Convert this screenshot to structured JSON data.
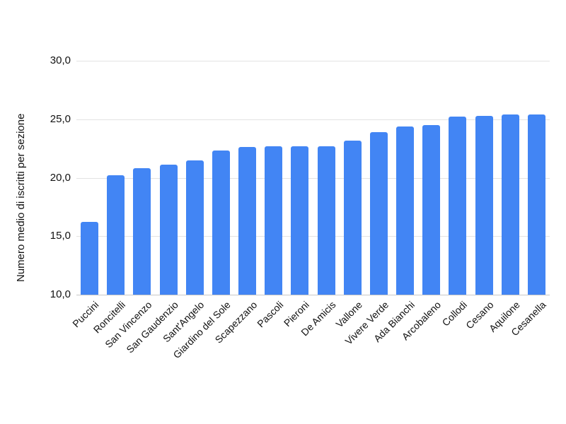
{
  "chart_data": {
    "type": "bar",
    "title": "",
    "xlabel": "",
    "ylabel": "Numero medio di iscritti per sezione",
    "categories": [
      "Puccini",
      "Roncitelli",
      "San Vincenzo",
      "San Gaudenzio",
      "Sant'Angelo",
      "Giardino del Sole",
      "Scapezzano",
      "Pascoli",
      "Pieroni",
      "De Amicis",
      "Vallone",
      "Vivere Verde",
      "Ada Bianchi",
      "Arcobaleno",
      "Collodi",
      "Cesano",
      "Aquilone",
      "Cesanella"
    ],
    "values": [
      16.2,
      20.2,
      20.8,
      21.1,
      21.5,
      22.3,
      22.6,
      22.7,
      22.7,
      22.7,
      23.2,
      23.9,
      24.4,
      24.5,
      25.2,
      25.3,
      25.4,
      25.4
    ],
    "ylim": [
      10,
      30
    ],
    "yticks": [
      10,
      15,
      20,
      25,
      30
    ],
    "ytick_labels": [
      "10,0",
      "15,0",
      "20,0",
      "25,0",
      "30,0"
    ],
    "grid": true,
    "legend_position": "none",
    "colors": {
      "bar": "#4285f4",
      "gridline": "#e3e3e3",
      "axis_line": "#c8c8c8",
      "text": "#111111",
      "background": "#ffffff"
    }
  }
}
